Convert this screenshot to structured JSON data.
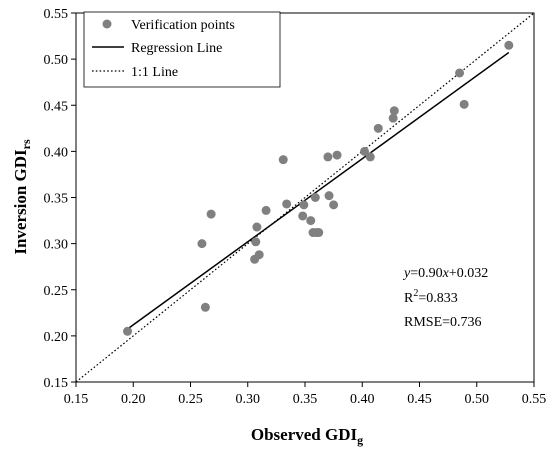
{
  "chart_data": {
    "type": "scatter",
    "xlabel": {
      "main": "Observed GDI",
      "sub": "g"
    },
    "ylabel": {
      "main": "Inversion GDI",
      "sub": "rs"
    },
    "xlim": [
      0.15,
      0.55
    ],
    "ylim": [
      0.15,
      0.55
    ],
    "xticks": [
      "0.15",
      "0.20",
      "0.25",
      "0.30",
      "0.35",
      "0.40",
      "0.45",
      "0.50",
      "0.55"
    ],
    "yticks": [
      "0.15",
      "0.20",
      "0.25",
      "0.30",
      "0.35",
      "0.40",
      "0.45",
      "0.50",
      "0.55"
    ],
    "xtick_values": [
      0.15,
      0.2,
      0.25,
      0.3,
      0.35,
      0.4,
      0.45,
      0.5,
      0.55
    ],
    "ytick_values": [
      0.15,
      0.2,
      0.25,
      0.3,
      0.35,
      0.4,
      0.45,
      0.5,
      0.55
    ],
    "grid": false,
    "legend": {
      "placement": "top-left",
      "points_label": "Verification points",
      "regression_label": "Regression Line",
      "identity_label": "1:1 Line"
    },
    "points_color": "#808080",
    "series": [
      {
        "name": "Verification points",
        "points": [
          [
            0.195,
            0.205
          ],
          [
            0.26,
            0.3
          ],
          [
            0.263,
            0.231
          ],
          [
            0.268,
            0.332
          ],
          [
            0.306,
            0.283
          ],
          [
            0.307,
            0.302
          ],
          [
            0.308,
            0.318
          ],
          [
            0.31,
            0.288
          ],
          [
            0.316,
            0.336
          ],
          [
            0.331,
            0.391
          ],
          [
            0.334,
            0.343
          ],
          [
            0.348,
            0.33
          ],
          [
            0.349,
            0.342
          ],
          [
            0.355,
            0.325
          ],
          [
            0.357,
            0.312
          ],
          [
            0.359,
            0.35
          ],
          [
            0.36,
            0.312
          ],
          [
            0.362,
            0.312
          ],
          [
            0.37,
            0.394
          ],
          [
            0.371,
            0.352
          ],
          [
            0.375,
            0.342
          ],
          [
            0.378,
            0.396
          ],
          [
            0.402,
            0.4
          ],
          [
            0.407,
            0.394
          ],
          [
            0.414,
            0.425
          ],
          [
            0.427,
            0.436
          ],
          [
            0.428,
            0.444
          ],
          [
            0.485,
            0.485
          ],
          [
            0.489,
            0.451
          ],
          [
            0.528,
            0.515
          ]
        ]
      }
    ],
    "regression": {
      "slope": 0.9,
      "intercept": 0.032,
      "x_range": [
        0.195,
        0.528
      ]
    },
    "identity": {
      "x_range": [
        0.15,
        0.55
      ]
    },
    "annotation": {
      "equation": {
        "y": "y",
        "eq": "=0.90",
        "x": "x",
        "rest": "+0.032"
      },
      "r2": {
        "base": "R",
        "sup": "2",
        "rest": "=0.833"
      },
      "rmse": "RMSE=0.736"
    }
  }
}
